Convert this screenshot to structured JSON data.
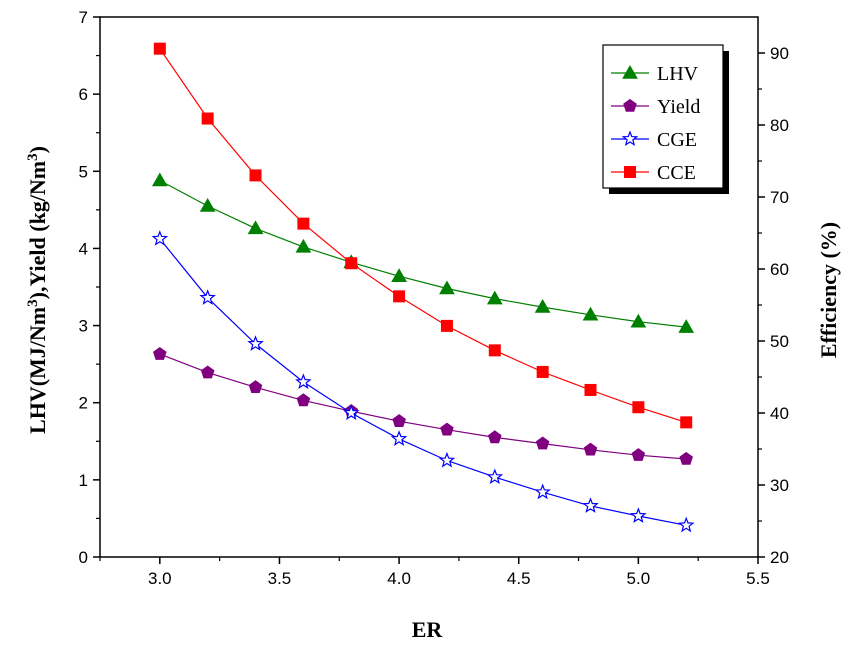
{
  "chart_data": {
    "type": "line",
    "xlabel": "ER",
    "ylabel_left": "LHV(MJ/Nm3),Yield (kg/Nm3)",
    "ylabel_right": "Efficiency (%)",
    "xlim": [
      2.75,
      5.5
    ],
    "ylim_left": [
      0,
      7
    ],
    "ylim_right": [
      20,
      95
    ],
    "x_ticks": [
      "3.0",
      "3.5",
      "4.0",
      "4.5",
      "5.0",
      "5.5"
    ],
    "y_left_ticks": [
      "0",
      "1",
      "2",
      "3",
      "4",
      "5",
      "6",
      "7"
    ],
    "y_right_ticks": [
      "20",
      "30",
      "40",
      "50",
      "60",
      "70",
      "80",
      "90"
    ],
    "x": [
      3.0,
      3.2,
      3.4,
      3.6,
      3.8,
      4.0,
      4.2,
      4.4,
      4.6,
      4.8,
      5.0,
      5.2
    ],
    "series": [
      {
        "name": "LHV",
        "axis": "left",
        "color": "#008000",
        "marker": "triangle",
        "values": [
          4.88,
          4.55,
          4.26,
          4.02,
          3.82,
          3.64,
          3.48,
          3.35,
          3.24,
          3.14,
          3.05,
          2.98
        ]
      },
      {
        "name": "Yield",
        "axis": "left",
        "color": "#800080",
        "marker": "pentagon",
        "values": [
          2.63,
          2.39,
          2.2,
          2.03,
          1.89,
          1.76,
          1.65,
          1.55,
          1.47,
          1.39,
          1.32,
          1.27
        ]
      },
      {
        "name": "CGE",
        "axis": "right",
        "color": "#0000ff",
        "marker": "star-open",
        "values": [
          64.2,
          56.0,
          49.6,
          44.3,
          40.0,
          36.4,
          33.4,
          31.1,
          29.0,
          27.1,
          25.7,
          24.4
        ]
      },
      {
        "name": "CCE",
        "axis": "right",
        "color": "#ff0000",
        "marker": "square",
        "values": [
          90.6,
          80.9,
          73.0,
          66.3,
          60.8,
          56.2,
          52.1,
          48.7,
          45.7,
          43.2,
          40.8,
          38.7
        ]
      }
    ],
    "legend_position": "top-right",
    "grid": false
  }
}
